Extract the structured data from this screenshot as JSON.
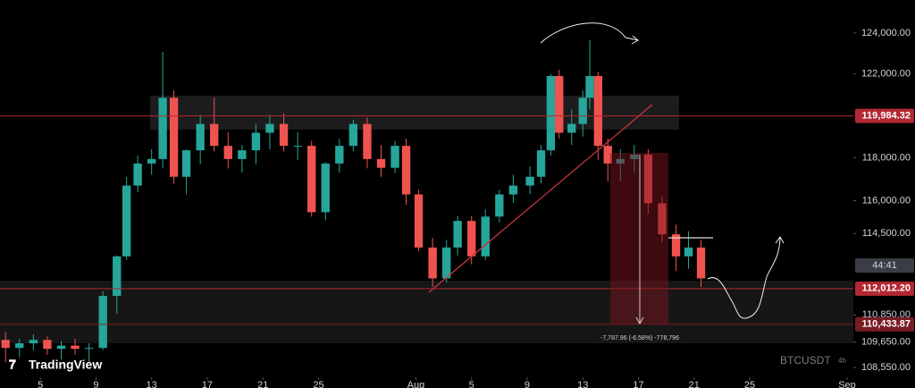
{
  "chart_data": {
    "type": "candlestick",
    "symbol": "BTCUSDT",
    "interval": "4h",
    "brand": "TradingView",
    "countdown": "44:41",
    "measure_label": "-7,787.96 (-6.58%) -778,796",
    "log_scale": true,
    "up_color": "#26a69a",
    "down_color": "#ef5350",
    "xlim": [
      2.1,
      63.45
    ],
    "xticks": [
      5,
      9,
      13,
      17,
      21,
      25,
      {
        "value": 32,
        "label": "Aug"
      },
      {
        "value": 36,
        "label": "5"
      },
      {
        "value": 40,
        "label": "9"
      },
      {
        "value": 44,
        "label": "13"
      },
      {
        "value": 48,
        "label": "17"
      },
      {
        "value": 52,
        "label": "21"
      },
      {
        "value": 56,
        "label": "25"
      },
      {
        "value": 63,
        "label": "Sep"
      }
    ],
    "ylim": [
      108130,
      125644
    ],
    "yticks": [
      {
        "value": 124000,
        "label": "124,000.00"
      },
      {
        "value": 122000,
        "label": "122,000.00"
      },
      {
        "value": 118000,
        "label": "118,000.00"
      },
      {
        "value": 116000,
        "label": "116,000.00"
      },
      {
        "value": 114500,
        "label": "114,500.00"
      },
      {
        "value": 110850,
        "label": "110,850.00"
      },
      {
        "value": 109650,
        "label": "109,650.00"
      },
      {
        "value": 108550,
        "label": "108,550.00"
      }
    ],
    "levels": [
      {
        "value": 119984.32,
        "label": "119,984.32",
        "color": "#b22833"
      },
      {
        "value": 112012.2,
        "label": "112,012.20",
        "color": "#b22833"
      },
      {
        "value": 110433.87,
        "label": "110,433.87",
        "color": "#7a1c24"
      }
    ],
    "x": [
      2.5,
      3.5,
      4.5,
      5.5,
      6.5,
      7.5,
      8.5,
      9.5,
      10.5,
      11.2,
      12,
      13,
      13.8,
      14.6,
      15.5,
      16.5,
      17.5,
      18.5,
      19.5,
      20.5,
      21.5,
      22.5,
      23.5,
      24.5,
      25.5,
      26.5,
      27.5,
      28.5,
      29.5,
      30.5,
      31.3,
      32.2,
      33.2,
      34.2,
      35,
      36,
      37,
      38,
      39,
      40.2,
      41,
      41.7,
      42.3,
      43.2,
      44,
      44.5,
      45.1,
      45.8,
      46.7,
      47.7,
      48.7,
      49.7,
      50.7,
      51.6,
      52.5
    ],
    "open": [
      109750,
      109400,
      109600,
      109750,
      109360,
      109500,
      109360,
      109400,
      111690,
      113460,
      116700,
      117730,
      117940,
      120850,
      117110,
      118350,
      119600,
      118560,
      117940,
      118350,
      119180,
      119600,
      118560,
      118560,
      115470,
      117730,
      118560,
      119600,
      117940,
      117530,
      118560,
      116290,
      113860,
      112470,
      113860,
      115070,
      113460,
      115270,
      116290,
      116700,
      117110,
      118350,
      121900,
      119180,
      119600,
      120850,
      121900,
      118560,
      117730,
      117940,
      118150,
      115880,
      114460,
      113460,
      113860
    ],
    "high": [
      110100,
      109800,
      110000,
      109900,
      109700,
      109800,
      109600,
      111900,
      113500,
      117100,
      118100,
      118400,
      123080,
      121200,
      118400,
      120030,
      120850,
      119200,
      118600,
      119600,
      120030,
      120100,
      119200,
      118800,
      117800,
      118900,
      119800,
      119900,
      118600,
      118800,
      118900,
      116500,
      114300,
      114200,
      115300,
      115300,
      115600,
      116500,
      117200,
      117600,
      118600,
      122000,
      122200,
      120300,
      121200,
      123650,
      122100,
      118900,
      118400,
      118600,
      118400,
      116200,
      114900,
      114600,
      114200
    ],
    "low": [
      108780,
      109000,
      109300,
      109100,
      108900,
      109100,
      108780,
      109300,
      110900,
      113300,
      116400,
      117200,
      117500,
      116800,
      116290,
      117700,
      118300,
      117500,
      117300,
      117700,
      118400,
      118300,
      117900,
      115270,
      115100,
      117300,
      118300,
      117500,
      117110,
      117300,
      115800,
      113700,
      112080,
      112280,
      113500,
      113100,
      113300,
      115000,
      115900,
      116300,
      116800,
      118100,
      118900,
      118600,
      119000,
      120300,
      117900,
      116900,
      116900,
      117300,
      115400,
      114100,
      112800,
      112900,
      112080
    ],
    "close": [
      109400,
      109600,
      109750,
      109360,
      109500,
      109360,
      109400,
      111690,
      113460,
      116700,
      117730,
      117940,
      120850,
      117110,
      118350,
      119600,
      118560,
      117940,
      118350,
      119180,
      119600,
      118560,
      118560,
      115470,
      117730,
      118560,
      119600,
      117940,
      117530,
      118560,
      116290,
      113860,
      112470,
      113860,
      115070,
      113460,
      115270,
      116290,
      116700,
      117110,
      118350,
      121900,
      119180,
      119600,
      120850,
      121900,
      118560,
      117730,
      117940,
      118150,
      115880,
      114460,
      113460,
      113860,
      112470
    ]
  }
}
